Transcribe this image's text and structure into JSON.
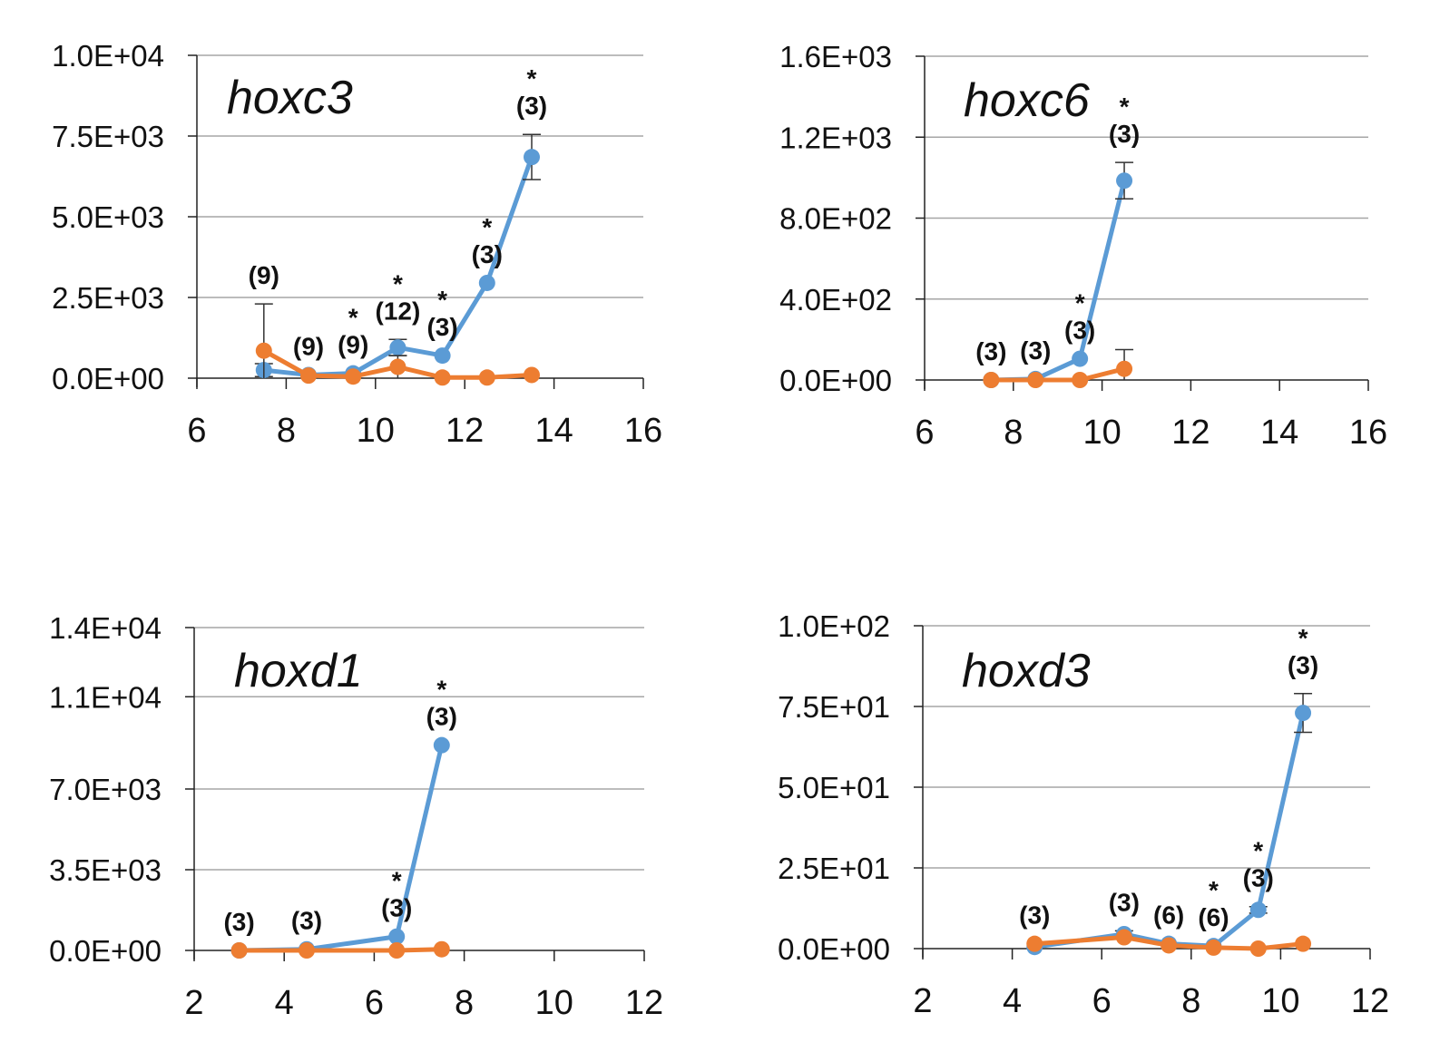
{
  "colors": {
    "blue": "#5b9bd5",
    "orange": "#ed7d31",
    "grid": "#a6a6a6",
    "axis": "#222222"
  },
  "chart_data": [
    {
      "type": "line",
      "title": "hoxc3",
      "xlim": [
        6,
        16
      ],
      "xticks": [
        6,
        8,
        10,
        12,
        14,
        16
      ],
      "ylim": [
        0,
        10000
      ],
      "yticks": [
        0,
        2500,
        5000,
        7500,
        10000
      ],
      "ytick_labels": [
        "0.0E+00",
        "2.5E+03",
        "5.0E+03",
        "7.5E+03",
        "1.0E+04"
      ],
      "grid": true,
      "x": [
        7.5,
        8.5,
        9.5,
        10.5,
        11.5,
        12.5,
        13.5
      ],
      "series": [
        {
          "name": "blue",
          "values": [
            250,
            100,
            150,
            950,
            700,
            2950,
            6850
          ],
          "errors": [
            200,
            0,
            0,
            250,
            0,
            0,
            700
          ]
        },
        {
          "name": "orange",
          "values": [
            850,
            80,
            50,
            350,
            20,
            20,
            100
          ],
          "errors": [
            1450,
            0,
            0,
            350,
            0,
            0,
            0
          ]
        }
      ],
      "annotations": [
        {
          "x": 7.5,
          "n": "(9)",
          "star": ""
        },
        {
          "x": 8.5,
          "n": "(9)",
          "star": ""
        },
        {
          "x": 9.5,
          "n": "(9)",
          "star": "*"
        },
        {
          "x": 10.5,
          "n": "(12)",
          "star": "*"
        },
        {
          "x": 11.5,
          "n": "(3)",
          "star": "*"
        },
        {
          "x": 12.5,
          "n": "(3)",
          "star": "*"
        },
        {
          "x": 13.5,
          "n": "(3)",
          "star": "*"
        }
      ]
    },
    {
      "type": "line",
      "title": "hoxc6",
      "xlim": [
        6,
        16
      ],
      "xticks": [
        6,
        8,
        10,
        12,
        14,
        16
      ],
      "ylim": [
        0,
        1600
      ],
      "yticks": [
        0,
        400,
        800,
        1200,
        1600
      ],
      "ytick_labels": [
        "0.0E+00",
        "4.0E+02",
        "8.0E+02",
        "1.2E+03",
        "1.6E+03"
      ],
      "grid": true,
      "x": [
        7.5,
        8.5,
        9.5,
        10.5
      ],
      "series": [
        {
          "name": "blue",
          "values": [
            0,
            5,
            105,
            985
          ],
          "errors": [
            0,
            0,
            0,
            90
          ]
        },
        {
          "name": "orange",
          "values": [
            0,
            0,
            0,
            55
          ],
          "errors": [
            0,
            0,
            0,
            95
          ]
        }
      ],
      "annotations": [
        {
          "x": 7.5,
          "n": "(3)",
          "star": ""
        },
        {
          "x": 8.5,
          "n": "(3)",
          "star": ""
        },
        {
          "x": 9.5,
          "n": "(3)",
          "star": "*"
        },
        {
          "x": 10.5,
          "n": "(3)",
          "star": "*"
        }
      ]
    },
    {
      "type": "line",
      "title": "hoxd1",
      "xlim": [
        2,
        12
      ],
      "xticks": [
        2,
        4,
        6,
        8,
        10,
        12
      ],
      "ylim": [
        0,
        14000
      ],
      "yticks": [
        0,
        3500,
        7000,
        11000,
        14000
      ],
      "ytick_labels": [
        "0.0E+00",
        "3.5E+03",
        "7.0E+03",
        "1.1E+04",
        "1.4E+04"
      ],
      "grid": true,
      "x": [
        3,
        4.5,
        6.5,
        7.5
      ],
      "series": [
        {
          "name": "blue",
          "values": [
            0,
            50,
            600,
            8900
          ],
          "errors": [
            0,
            0,
            0,
            0
          ]
        },
        {
          "name": "orange",
          "values": [
            0,
            0,
            0,
            50
          ],
          "errors": [
            0,
            0,
            0,
            0
          ]
        }
      ],
      "annotations": [
        {
          "x": 3,
          "n": "(3)",
          "star": ""
        },
        {
          "x": 4.5,
          "n": "(3)",
          "star": ""
        },
        {
          "x": 6.5,
          "n": "(3)",
          "star": "*"
        },
        {
          "x": 7.5,
          "n": "(3)",
          "star": "*"
        }
      ]
    },
    {
      "type": "line",
      "title": "hoxd3",
      "xlim": [
        2,
        12
      ],
      "xticks": [
        2,
        4,
        6,
        8,
        10,
        12
      ],
      "ylim": [
        0,
        100
      ],
      "yticks": [
        0,
        25,
        50,
        75,
        100
      ],
      "ytick_labels": [
        "0.0E+00",
        "2.5E+01",
        "5.0E+01",
        "7.5E+01",
        "1.0E+02"
      ],
      "grid": true,
      "x": [
        4.5,
        6.5,
        7.5,
        8.5,
        9.5,
        10.5
      ],
      "series": [
        {
          "name": "blue",
          "values": [
            0.5,
            4.5,
            1.5,
            0.8,
            12,
            73
          ],
          "errors": [
            0,
            1,
            0,
            0,
            1,
            6
          ]
        },
        {
          "name": "orange",
          "values": [
            1.5,
            3.5,
            1,
            0.3,
            0,
            1.5
          ],
          "errors": [
            0,
            0,
            0,
            0,
            0,
            0
          ]
        }
      ],
      "annotations": [
        {
          "x": 4.5,
          "n": "(3)",
          "star": ""
        },
        {
          "x": 6.5,
          "n": "(3)",
          "star": ""
        },
        {
          "x": 7.5,
          "n": "(6)",
          "star": ""
        },
        {
          "x": 8.5,
          "n": "(6)",
          "star": "*"
        },
        {
          "x": 9.5,
          "n": "(3)",
          "star": "*"
        },
        {
          "x": 10.5,
          "n": "(3)",
          "star": "*"
        }
      ]
    }
  ]
}
